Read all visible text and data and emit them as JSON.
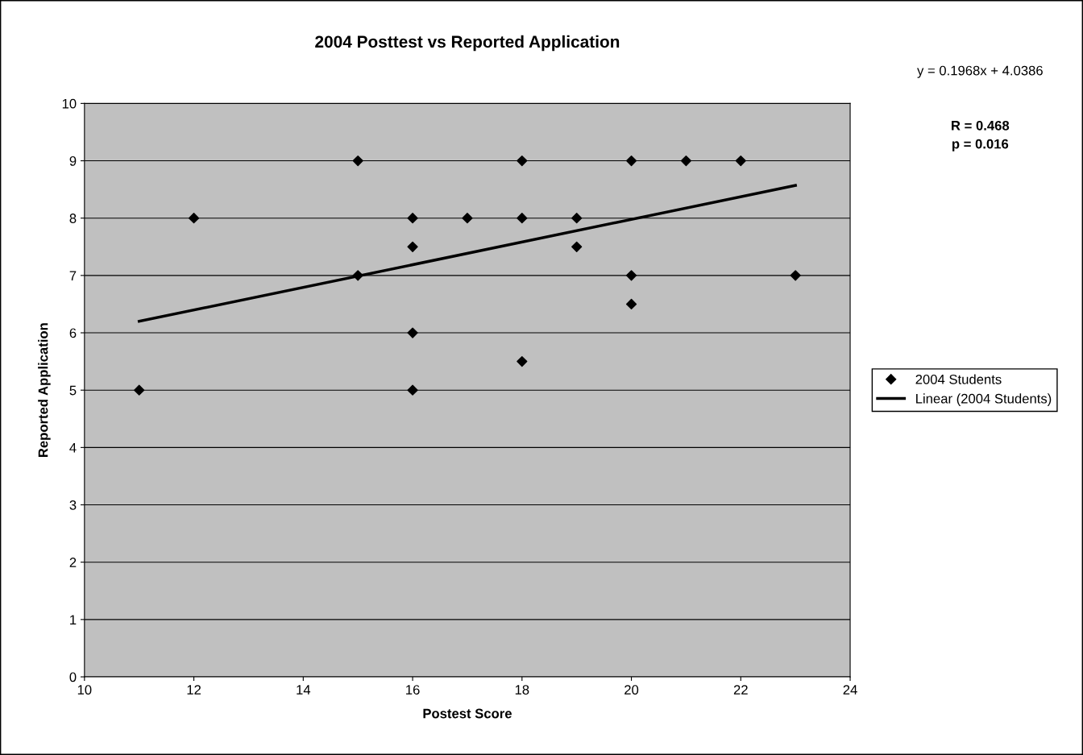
{
  "chart_data": {
    "type": "scatter",
    "title": "2004 Posttest vs Reported Application",
    "xlabel": "Postest Score",
    "ylabel": "Reported Application",
    "series": [
      {
        "name": "2004 Students",
        "color": "#000000",
        "marker": "diamond",
        "x": [
          11,
          12,
          15,
          15,
          16,
          16,
          16,
          16,
          17,
          18,
          18,
          18,
          19,
          19,
          20,
          20,
          20,
          21,
          22,
          23
        ],
        "values": [
          5,
          8,
          9,
          7,
          8,
          7.5,
          6,
          5,
          8,
          9,
          8,
          5.5,
          8,
          7.5,
          9,
          7,
          6.5,
          9,
          9,
          7
        ]
      },
      {
        "name": "Linear (2004 Students)",
        "type": "line",
        "color": "#000000",
        "marker": "none",
        "line_style": "solid",
        "x": [
          11,
          23
        ],
        "values": [
          6.2,
          8.57
        ]
      }
    ],
    "xlim": [
      10,
      24
    ],
    "xticks": [
      10,
      12,
      14,
      16,
      18,
      20,
      22,
      24
    ],
    "ylim": [
      0,
      10
    ],
    "yticks": [
      0,
      1,
      2,
      3,
      4,
      5,
      6,
      7,
      8,
      9,
      10
    ],
    "grid": "y",
    "legend": "right",
    "annotations": [
      "y = 0.1968x + 4.0386",
      "R = 0.468\np = 0.016"
    ]
  }
}
